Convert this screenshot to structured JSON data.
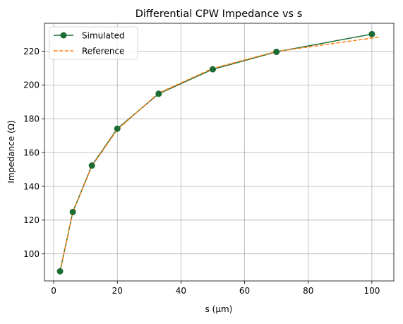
{
  "chart_data": {
    "type": "line",
    "title": "Differential CPW Impedance vs s",
    "xlabel": "s (µm)",
    "ylabel": "Impedance (Ω)",
    "xlim": [
      -2.9,
      106.9
    ],
    "ylim": [
      84.0,
      236.5
    ],
    "x_ticks": [
      0,
      20,
      40,
      60,
      80,
      100
    ],
    "y_ticks": [
      100,
      120,
      140,
      160,
      180,
      200,
      220
    ],
    "grid": true,
    "legend_position": "top-left",
    "series": [
      {
        "name": "Simulated",
        "style": "solid-with-markers",
        "color": "#1b6b32",
        "x": [
          2,
          6,
          12,
          20,
          33,
          50,
          70,
          100
        ],
        "y": [
          89.7,
          124.8,
          152.3,
          174.1,
          194.8,
          209.3,
          219.6,
          230.1
        ]
      },
      {
        "name": "Reference",
        "style": "dashed",
        "color": "#ff7f0e",
        "x": [
          2,
          6,
          12,
          20,
          33,
          50,
          70,
          102
        ],
        "y": [
          89.7,
          124.6,
          152.0,
          173.6,
          195.2,
          209.8,
          219.8,
          228.3
        ]
      }
    ]
  }
}
